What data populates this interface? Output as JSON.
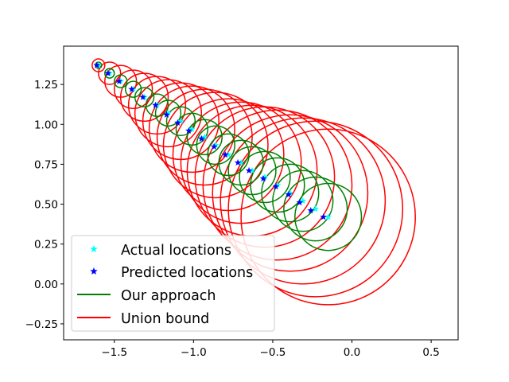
{
  "chart_data": {
    "type": "scatter",
    "title": "",
    "xlabel": "",
    "ylabel": "",
    "xlim": [
      -1.82,
      0.67
    ],
    "ylim": [
      -0.35,
      1.49
    ],
    "xticks": [
      -1.5,
      -1.0,
      -0.5,
      0.0,
      0.5
    ],
    "xtick_labels": [
      "−1.5",
      "−1.0",
      "−0.5",
      "0.0",
      "0.5"
    ],
    "yticks": [
      -0.25,
      0.0,
      0.25,
      0.5,
      0.75,
      1.0,
      1.25
    ],
    "ytick_labels": [
      "−0.25",
      "0.00",
      "0.25",
      "0.50",
      "0.75",
      "1.00",
      "1.25"
    ],
    "grid": false,
    "legend_placement": "lower-left",
    "legend": [
      {
        "label": "Actual locations",
        "kind": "star",
        "color": "#00ffff"
      },
      {
        "label": "Predicted locations",
        "kind": "star",
        "color": "#0000ff"
      },
      {
        "label": "Our approach",
        "kind": "line",
        "color": "#008000"
      },
      {
        "label": "Union bound",
        "kind": "line",
        "color": "#ff0000"
      }
    ],
    "series": [
      {
        "name": "Actual locations",
        "color": "#00ffff",
        "x": [
          -1.6,
          -1.53,
          -1.46,
          -1.38,
          -1.31,
          -1.23,
          -1.16,
          -1.08,
          -1.01,
          -0.93,
          -0.86,
          -0.78,
          -0.7,
          -0.63,
          -0.55,
          -0.47,
          -0.39,
          -0.31,
          -0.23,
          -0.15
        ],
        "y": [
          1.37,
          1.32,
          1.27,
          1.22,
          1.17,
          1.12,
          1.07,
          1.02,
          0.97,
          0.92,
          0.87,
          0.81,
          0.76,
          0.71,
          0.67,
          0.62,
          0.57,
          0.52,
          0.47,
          0.42
        ]
      },
      {
        "name": "Predicted locations",
        "color": "#0000ff",
        "x": [
          -1.61,
          -1.54,
          -1.47,
          -1.39,
          -1.32,
          -1.24,
          -1.17,
          -1.1,
          -1.03,
          -0.95,
          -0.87,
          -0.8,
          -0.72,
          -0.65,
          -0.56,
          -0.48,
          -0.4,
          -0.33,
          -0.26,
          -0.18
        ],
        "y": [
          1.37,
          1.32,
          1.27,
          1.22,
          1.17,
          1.12,
          1.06,
          1.01,
          0.96,
          0.91,
          0.86,
          0.81,
          0.76,
          0.71,
          0.66,
          0.61,
          0.56,
          0.51,
          0.46,
          0.42
        ]
      },
      {
        "name": "Our approach",
        "color": "#008000",
        "centers_x": [
          -1.6,
          -1.53,
          -1.46,
          -1.38,
          -1.31,
          -1.23,
          -1.16,
          -1.08,
          -1.01,
          -0.93,
          -0.86,
          -0.78,
          -0.7,
          -0.63,
          -0.55,
          -0.47,
          -0.39,
          -0.31,
          -0.23,
          -0.15
        ],
        "centers_y": [
          1.37,
          1.32,
          1.27,
          1.22,
          1.17,
          1.12,
          1.07,
          1.02,
          0.97,
          0.92,
          0.87,
          0.81,
          0.76,
          0.71,
          0.67,
          0.62,
          0.57,
          0.52,
          0.47,
          0.42
        ],
        "radii": [
          0.02,
          0.03,
          0.04,
          0.05,
          0.06,
          0.07,
          0.08,
          0.09,
          0.1,
          0.11,
          0.12,
          0.13,
          0.14,
          0.15,
          0.16,
          0.17,
          0.18,
          0.19,
          0.2,
          0.21
        ]
      },
      {
        "name": "Union bound",
        "color": "#ff0000",
        "centers_x": [
          -1.6,
          -1.53,
          -1.46,
          -1.38,
          -1.31,
          -1.23,
          -1.16,
          -1.08,
          -1.01,
          -0.93,
          -0.86,
          -0.78,
          -0.7,
          -0.63,
          -0.55,
          -0.47,
          -0.39,
          -0.31,
          -0.23,
          -0.15
        ],
        "centers_y": [
          1.37,
          1.32,
          1.27,
          1.22,
          1.17,
          1.12,
          1.07,
          1.02,
          0.97,
          0.92,
          0.87,
          0.81,
          0.76,
          0.71,
          0.67,
          0.62,
          0.57,
          0.52,
          0.47,
          0.42
        ],
        "radii": [
          0.04,
          0.07,
          0.1,
          0.12,
          0.15,
          0.18,
          0.21,
          0.24,
          0.27,
          0.3,
          0.33,
          0.35,
          0.38,
          0.41,
          0.44,
          0.47,
          0.49,
          0.52,
          0.55,
          0.55
        ]
      }
    ]
  }
}
